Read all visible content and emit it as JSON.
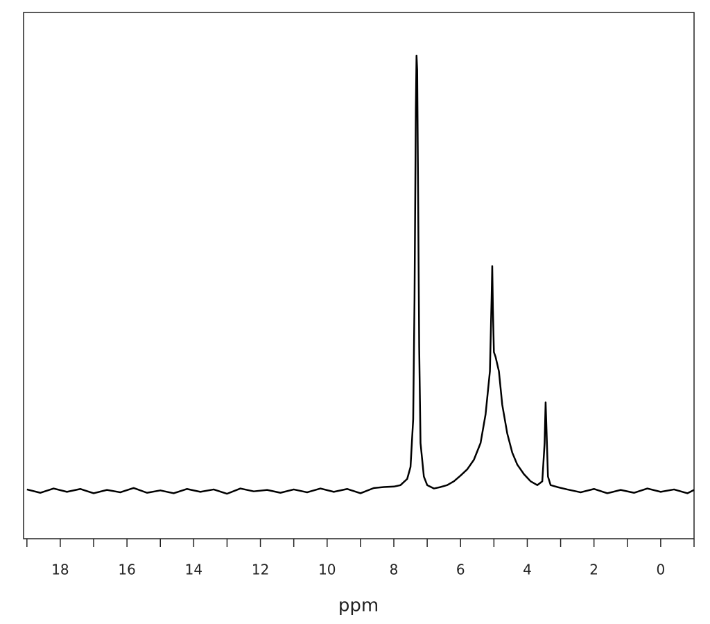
{
  "chart_data": {
    "type": "line",
    "x_label": "ppm",
    "xlim": [
      19.1,
      -1.0
    ],
    "ylim": [
      -10,
      100
    ],
    "xticks": [
      18,
      16,
      14,
      12,
      10,
      8,
      6,
      4,
      2,
      0
    ],
    "xminorticks": [
      19,
      17,
      15,
      13,
      11,
      9,
      7,
      5,
      3,
      1,
      -1
    ],
    "color": "#000000",
    "x": [
      19.0,
      18.6,
      18.2,
      17.8,
      17.4,
      17.0,
      16.6,
      16.2,
      15.8,
      15.4,
      15.0,
      14.6,
      14.2,
      13.8,
      13.4,
      13.0,
      12.6,
      12.2,
      11.8,
      11.4,
      11.0,
      10.6,
      10.2,
      9.8,
      9.4,
      9.0,
      8.6,
      8.3,
      8.0,
      7.8,
      7.6,
      7.5,
      7.42,
      7.38,
      7.34,
      7.32,
      7.3,
      7.27,
      7.24,
      7.2,
      7.1,
      7.0,
      6.8,
      6.6,
      6.4,
      6.2,
      6.0,
      5.8,
      5.6,
      5.4,
      5.25,
      5.12,
      5.07,
      5.05,
      5.03,
      5.0,
      4.95,
      4.85,
      4.75,
      4.6,
      4.45,
      4.3,
      4.1,
      3.9,
      3.7,
      3.55,
      3.48,
      3.45,
      3.42,
      3.38,
      3.3,
      3.1,
      2.8,
      2.4,
      2.0,
      1.6,
      1.2,
      0.8,
      0.4,
      0.0,
      -0.4,
      -0.8,
      -1.0
    ],
    "values": [
      0.3,
      -0.4,
      0.5,
      -0.2,
      0.4,
      -0.5,
      0.2,
      -0.3,
      0.6,
      -0.4,
      0.1,
      -0.5,
      0.4,
      -0.2,
      0.3,
      -0.6,
      0.5,
      -0.1,
      0.2,
      -0.4,
      0.3,
      -0.3,
      0.5,
      -0.2,
      0.4,
      -0.5,
      0.6,
      0.8,
      0.9,
      1.2,
      2.5,
      5,
      15,
      40,
      80,
      91,
      88,
      60,
      30,
      10,
      3,
      1.2,
      0.5,
      0.8,
      1.2,
      2,
      3.2,
      4.5,
      6.5,
      10,
      16,
      25,
      40,
      47,
      38,
      29,
      28,
      25,
      18,
      12,
      8,
      5.5,
      3.5,
      2,
      1.2,
      2,
      10,
      18.5,
      12,
      3,
      1.2,
      0.8,
      0.3,
      -0.3,
      0.4,
      -0.5,
      0.2,
      -0.4,
      0.5,
      -0.2,
      0.3,
      -0.5,
      0.2
    ]
  }
}
